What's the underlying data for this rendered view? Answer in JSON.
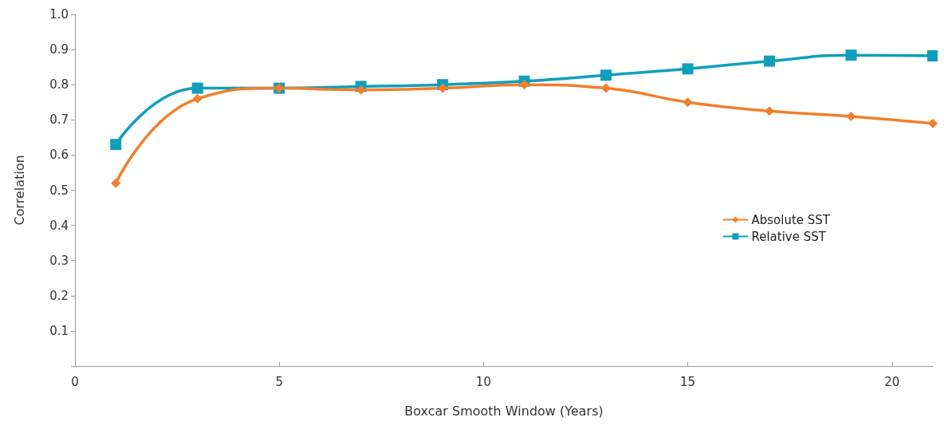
{
  "chart_data": {
    "type": "line",
    "xlabel": "Boxcar Smooth Window (Years)",
    "ylabel": "Correlation",
    "x": [
      1,
      3,
      5,
      7,
      9,
      11,
      13,
      15,
      17,
      19,
      21
    ],
    "series": [
      {
        "name": "Absolute SST",
        "color": "#f07f2c",
        "marker": "diamond",
        "values": [
          0.52,
          0.76,
          0.79,
          0.785,
          0.79,
          0.8,
          0.79,
          0.75,
          0.725,
          0.71,
          0.69
        ]
      },
      {
        "name": "Relative SST",
        "color": "#0f9fbd",
        "marker": "square",
        "values": [
          0.63,
          0.79,
          0.79,
          0.795,
          0.8,
          0.81,
          0.827,
          0.845,
          0.867,
          0.884,
          0.882
        ]
      }
    ],
    "xlim": [
      0,
      21
    ],
    "xticks": [
      0,
      5,
      10,
      15,
      20
    ],
    "ylim": [
      0,
      1
    ],
    "yticks": [
      {
        "value": 0,
        "label": null
      },
      0.1,
      0.2,
      0.3,
      0.4,
      0.5,
      0.6,
      0.7,
      0.8,
      0.9,
      {
        "value": 1,
        "label": "1.0"
      }
    ],
    "grid": false,
    "legend": "right"
  }
}
